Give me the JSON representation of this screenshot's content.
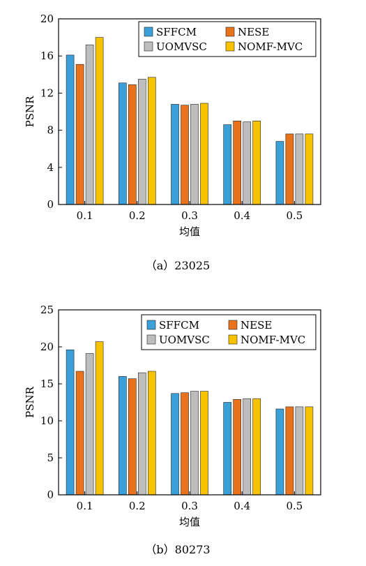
{
  "chart_data": [
    {
      "type": "bar",
      "caption": "（a）23025",
      "xlabel": "均值",
      "ylabel": "PSNR",
      "categories": [
        "0.1",
        "0.2",
        "0.3",
        "0.4",
        "0.5"
      ],
      "ylim": [
        0,
        20
      ],
      "yticks": [
        0,
        4,
        8,
        12,
        16,
        20
      ],
      "legend_position": "top-right",
      "series": [
        {
          "name": "SFFCM",
          "color": "#3b9fd8",
          "values": [
            16.1,
            13.1,
            10.8,
            8.6,
            6.8
          ]
        },
        {
          "name": "UOMVSC",
          "color": "#bdbdbd",
          "values": [
            17.2,
            13.5,
            10.8,
            8.9,
            7.6
          ]
        },
        {
          "name": "NESE",
          "color": "#e8731c",
          "values": [
            15.1,
            12.9,
            10.7,
            9.0,
            7.6
          ]
        },
        {
          "name": "NOMF-MVC",
          "color": "#f7c300",
          "values": [
            18.0,
            13.7,
            10.9,
            9.0,
            7.6
          ]
        }
      ]
    },
    {
      "type": "bar",
      "caption": "（b）80273",
      "xlabel": "均值",
      "ylabel": "PSNR",
      "categories": [
        "0.1",
        "0.2",
        "0.3",
        "0.4",
        "0.5"
      ],
      "ylim": [
        0,
        25
      ],
      "yticks": [
        0,
        5,
        10,
        15,
        20,
        25
      ],
      "legend_position": "top-right",
      "series": [
        {
          "name": "SFFCM",
          "color": "#3b9fd8",
          "values": [
            19.6,
            16.0,
            13.7,
            12.5,
            11.6
          ]
        },
        {
          "name": "UOMVSC",
          "color": "#bdbdbd",
          "values": [
            19.1,
            16.5,
            14.0,
            13.0,
            11.9
          ]
        },
        {
          "name": "NESE",
          "color": "#e8731c",
          "values": [
            16.7,
            15.7,
            13.8,
            12.9,
            11.9
          ]
        },
        {
          "name": "NOMF-MVC",
          "color": "#f7c300",
          "values": [
            20.7,
            16.7,
            14.0,
            13.0,
            11.9
          ]
        }
      ]
    }
  ]
}
